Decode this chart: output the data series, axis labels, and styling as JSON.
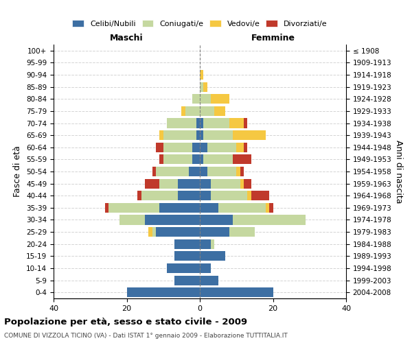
{
  "age_groups": [
    "0-4",
    "5-9",
    "10-14",
    "15-19",
    "20-24",
    "25-29",
    "30-34",
    "35-39",
    "40-44",
    "45-49",
    "50-54",
    "55-59",
    "60-64",
    "65-69",
    "70-74",
    "75-79",
    "80-84",
    "85-89",
    "90-94",
    "95-99",
    "100+"
  ],
  "birth_years": [
    "2004-2008",
    "1999-2003",
    "1994-1998",
    "1989-1993",
    "1984-1988",
    "1979-1983",
    "1974-1978",
    "1969-1973",
    "1964-1968",
    "1959-1963",
    "1954-1958",
    "1949-1953",
    "1944-1948",
    "1939-1943",
    "1934-1938",
    "1929-1933",
    "1924-1928",
    "1919-1923",
    "1914-1918",
    "1909-1913",
    "≤ 1908"
  ],
  "maschi": {
    "celibi": [
      20,
      7,
      9,
      7,
      7,
      12,
      15,
      11,
      6,
      6,
      3,
      2,
      2,
      1,
      1,
      0,
      0,
      0,
      0,
      0,
      0
    ],
    "coniugati": [
      0,
      0,
      0,
      0,
      0,
      1,
      7,
      14,
      10,
      5,
      9,
      8,
      8,
      9,
      8,
      4,
      2,
      0,
      0,
      0,
      0
    ],
    "vedovi": [
      0,
      0,
      0,
      0,
      0,
      1,
      0,
      0,
      0,
      0,
      0,
      0,
      0,
      1,
      0,
      1,
      0,
      0,
      0,
      0,
      0
    ],
    "divorziati": [
      0,
      0,
      0,
      0,
      0,
      0,
      0,
      1,
      1,
      4,
      1,
      1,
      2,
      0,
      0,
      0,
      0,
      0,
      0,
      0,
      0
    ]
  },
  "femmine": {
    "nubili": [
      20,
      5,
      3,
      7,
      3,
      8,
      9,
      5,
      3,
      3,
      2,
      1,
      2,
      1,
      1,
      0,
      0,
      0,
      0,
      0,
      0
    ],
    "coniugate": [
      0,
      0,
      0,
      0,
      1,
      7,
      20,
      13,
      10,
      8,
      8,
      8,
      8,
      8,
      7,
      4,
      3,
      1,
      0,
      0,
      0
    ],
    "vedove": [
      0,
      0,
      0,
      0,
      0,
      0,
      0,
      1,
      1,
      1,
      1,
      0,
      2,
      9,
      4,
      3,
      5,
      1,
      1,
      0,
      0
    ],
    "divorziate": [
      0,
      0,
      0,
      0,
      0,
      0,
      0,
      1,
      5,
      2,
      1,
      5,
      1,
      0,
      1,
      0,
      0,
      0,
      0,
      0,
      0
    ]
  },
  "color_celibi": "#3d6fa3",
  "color_coniugati": "#c5d8a0",
  "color_vedovi": "#f5c842",
  "color_divorziati": "#c0392b",
  "xlim": 40,
  "title": "Popolazione per età, sesso e stato civile - 2009",
  "subtitle": "COMUNE DI VIZZOLA TICINO (VA) - Dati ISTAT 1° gennaio 2009 - Elaborazione TUTTITALIA.IT",
  "ylabel_left": "Fasce di età",
  "ylabel_right": "Anni di nascita",
  "xlabel_left": "Maschi",
  "xlabel_right": "Femmine",
  "figsize": [
    6.0,
    5.0
  ],
  "dpi": 100
}
